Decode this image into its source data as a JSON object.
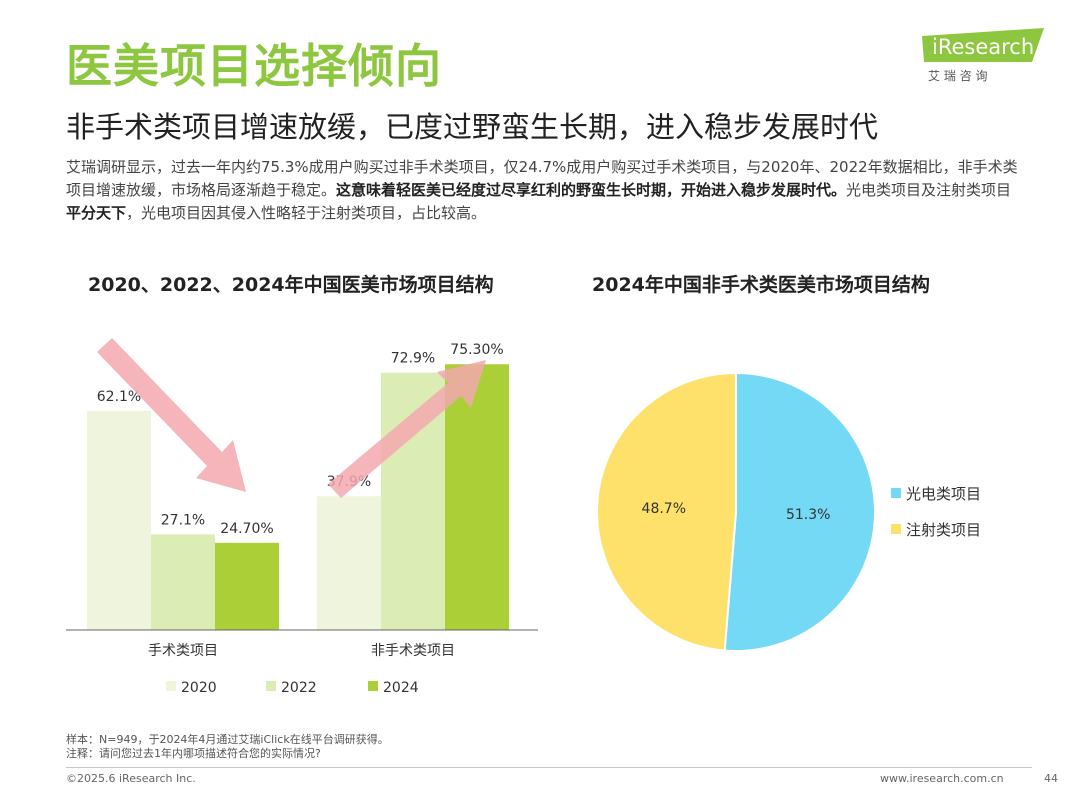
{
  "header": {
    "title": "医美项目选择倾向",
    "subtitle": "非手术类项目增速放缓，已度过野蛮生长期，进入稳步发展时代",
    "intro_part1": "艾瑞调研显示，过去一年内约75.3%成用户购买过非手术类项目，仅24.7%成用户购买过手术类项目，与2020年、2022年数据相比，非手术类项目增速放缓，市场格局逐渐趋于稳定。",
    "intro_bold1": "这意味着轻医美已经度过尽享红利的野蛮生长时期，开始进入稳步发展时代。",
    "intro_part2": "光电类项目及注射类项目",
    "intro_bold2": "平分天下",
    "intro_part3": "，光电项目因其侵入性略轻于注射类项目，占比较高。"
  },
  "logo": {
    "brand": "iResearch",
    "chinese": "艾 瑞 咨 询",
    "color": "#8dc63f"
  },
  "chart_data": [
    {
      "type": "bar",
      "title": "2020、2022、2024年中国医美市场项目结构",
      "categories": [
        "手术类项目",
        "非手术类项目"
      ],
      "series": [
        {
          "name": "2020",
          "values": [
            62.1,
            37.9
          ],
          "labels": [
            "62.1%",
            "37.9%"
          ],
          "color": "#eef5dc"
        },
        {
          "name": "2022",
          "values": [
            27.1,
            72.9
          ],
          "labels": [
            "27.1%",
            "72.9%"
          ],
          "color": "#dbedb5"
        },
        {
          "name": "2024",
          "values": [
            24.7,
            75.3
          ],
          "labels": [
            "24.70%",
            "75.30%"
          ],
          "color": "#aacf37"
        }
      ],
      "ylim": [
        0,
        85
      ],
      "legend": "bottom",
      "annotations": [
        "down-arrow over 手术类项目 (pink)",
        "up-arrow over 非手术类项目 (pink)"
      ],
      "arrow_color": "#f3a8ae"
    },
    {
      "type": "pie",
      "title": "2024年中国非手术类医美市场项目结构",
      "slices": [
        {
          "name": "光电类项目",
          "value": 51.3,
          "label": "51.3%",
          "color": "#74d9f5"
        },
        {
          "name": "注射类项目",
          "value": 48.7,
          "label": "48.7%",
          "color": "#fde16a"
        }
      ],
      "legend": "right"
    }
  ],
  "footer": {
    "sample": "样本：N=949，于2024年4月通过艾瑞iClick在线平台调研获得。",
    "note": "注释：请问您过去1年内哪项描述符合您的实际情况?",
    "copyright": "©2025.6 iResearch Inc.",
    "website": "www.iresearch.com.cn",
    "page": "44"
  }
}
